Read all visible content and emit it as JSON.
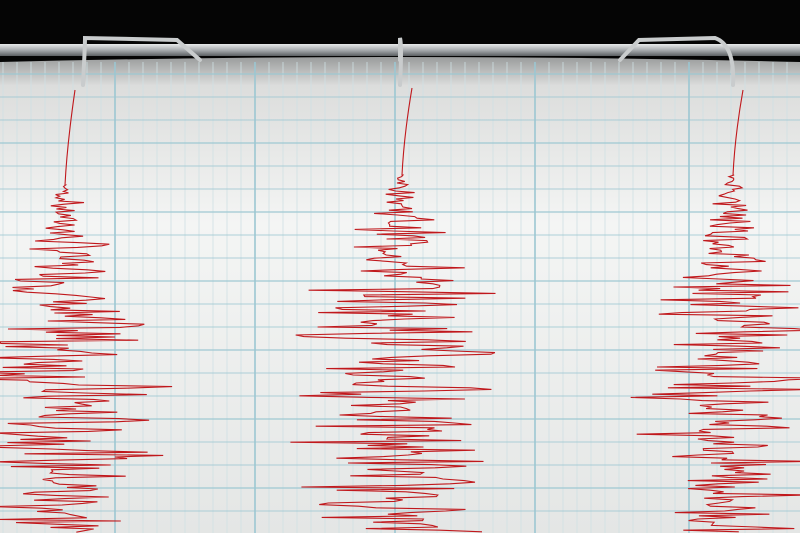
{
  "scene": {
    "subject": "seismograph",
    "colors": {
      "background": "#050505",
      "paper": "#f2f3f2",
      "grid_minor": "#cfe0e4",
      "grid_major": "#9cc7d2",
      "trace": "#c0181c",
      "bar": "#b8bcbf"
    },
    "styluses": 3
  }
}
